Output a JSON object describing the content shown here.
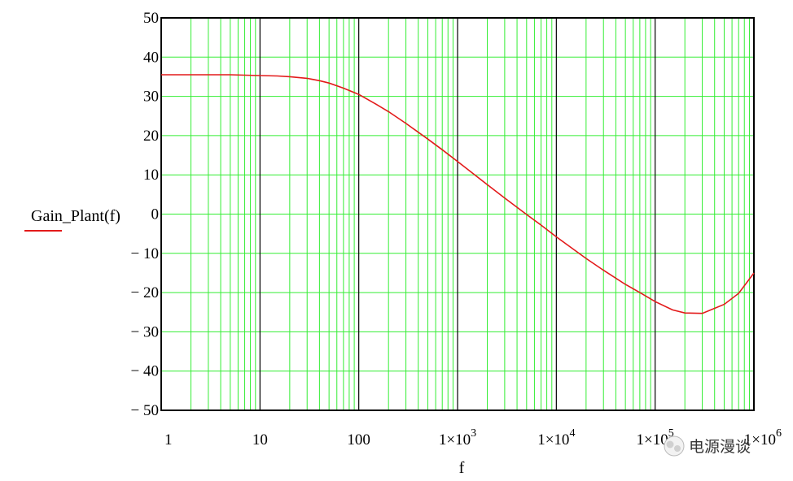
{
  "chart_data": {
    "type": "line",
    "title": "",
    "xlabel": "f",
    "ylabel": "Gain_Plant(f)",
    "x_scale": "log",
    "xlim": [
      1,
      1000000
    ],
    "ylim": [
      -50,
      50
    ],
    "grid": true,
    "x_tick_labels": [
      {
        "value": 1,
        "mant": "1",
        "exp": ""
      },
      {
        "value": 10,
        "mant": "10",
        "exp": ""
      },
      {
        "value": 100,
        "mant": "100",
        "exp": ""
      },
      {
        "value": 1000,
        "mant": "1×10",
        "exp": "3"
      },
      {
        "value": 10000,
        "mant": "1×10",
        "exp": "4"
      },
      {
        "value": 100000,
        "mant": "1×10",
        "exp": "5"
      },
      {
        "value": 1000000,
        "mant": "1×10",
        "exp": "6"
      }
    ],
    "y_ticks": [
      50,
      40,
      30,
      20,
      10,
      0,
      -10,
      -20,
      -30,
      -40,
      -50
    ],
    "y_tick_labels": [
      "50",
      "40",
      "30",
      "20",
      "10",
      "0",
      "− 10",
      "− 20",
      "− 30",
      "− 40",
      "− 50"
    ],
    "series": [
      {
        "name": "Gain_Plant(f)",
        "color": "#e31a1a",
        "x": [
          1,
          2,
          3,
          5,
          7,
          10,
          15,
          20,
          30,
          40,
          50,
          70,
          100,
          150,
          200,
          300,
          500,
          700,
          1000,
          2000,
          3000,
          5000,
          7000,
          10000,
          20000,
          30000,
          50000,
          70000,
          100000,
          150000,
          200000,
          300000,
          500000,
          700000,
          1000000
        ],
        "y": [
          35.5,
          35.5,
          35.5,
          35.5,
          35.4,
          35.3,
          35.2,
          35.0,
          34.6,
          34.0,
          33.4,
          32.1,
          30.5,
          28.0,
          26.1,
          23.1,
          19.1,
          16.4,
          13.4,
          7.5,
          4.1,
          -0.1,
          -2.8,
          -5.8,
          -11.3,
          -14.3,
          -17.9,
          -20.0,
          -22.3,
          -24.4,
          -25.2,
          -25.3,
          -23.0,
          -20.2,
          -15.0
        ]
      }
    ],
    "colors": {
      "major_grid": "#000000",
      "minor_grid": "#33ee33",
      "frame": "#000000"
    }
  },
  "watermark": "电源漫谈"
}
